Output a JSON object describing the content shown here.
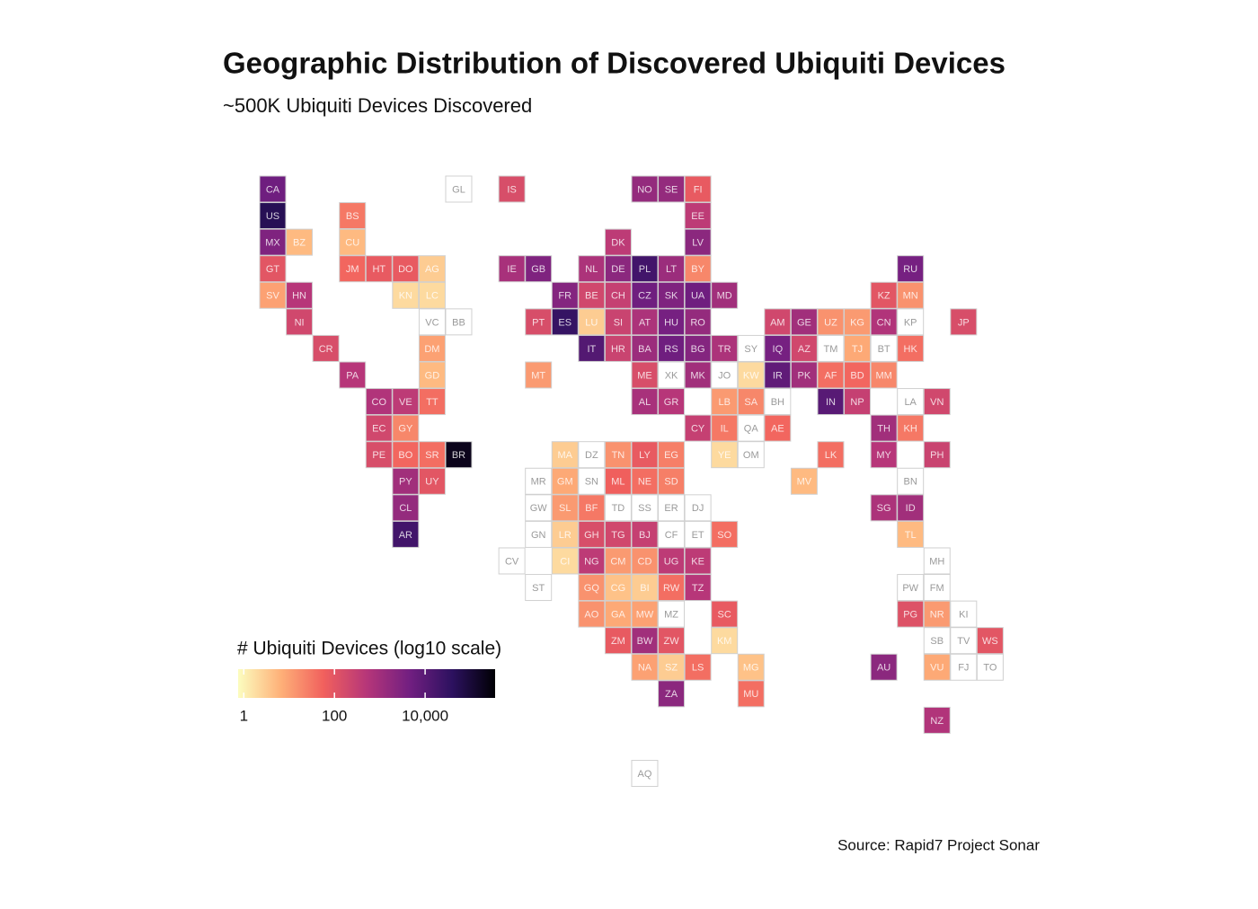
{
  "chart_data": {
    "type": "tilemap",
    "title": "Geographic Distribution of Discovered Ubiquiti Devices",
    "subtitle": "~500K Ubiquiti Devices Discovered",
    "source": "Source: Rapid7 Project Sonar",
    "legend_title": "# Ubiquiti Devices (log10 scale)",
    "log_scale": true,
    "colorlim": [
      0.75,
      350000
    ],
    "colorticks": [
      {
        "value": 1,
        "label": "1"
      },
      {
        "value": 100,
        "label": "100"
      },
      {
        "value": 10000,
        "label": "10,000"
      }
    ],
    "colormap": [
      "#fcfdbf",
      "#feb078",
      "#f1605d",
      "#b63679",
      "#721f81",
      "#2c115f",
      "#000004"
    ],
    "empty_color": "#ffffff",
    "tiles": [
      {
        "code": "CA",
        "value": 5000
      },
      {
        "code": "GL",
        "value": null
      },
      {
        "code": "IS",
        "value": 150
      },
      {
        "code": "NO",
        "value": 1500
      },
      {
        "code": "SE",
        "value": 1500
      },
      {
        "code": "FI",
        "value": 80
      },
      {
        "code": "US",
        "value": 50000
      },
      {
        "code": "BS",
        "value": 30
      },
      {
        "code": "EE",
        "value": 400
      },
      {
        "code": "MX",
        "value": 3000
      },
      {
        "code": "BZ",
        "value": 5
      },
      {
        "code": "CU",
        "value": 5
      },
      {
        "code": "DK",
        "value": 400
      },
      {
        "code": "LV",
        "value": 2000
      },
      {
        "code": "GT",
        "value": 100
      },
      {
        "code": "JM",
        "value": 50
      },
      {
        "code": "HT",
        "value": 80
      },
      {
        "code": "DO",
        "value": 80
      },
      {
        "code": "AG",
        "value": 3
      },
      {
        "code": "IE",
        "value": 800
      },
      {
        "code": "GB",
        "value": 3000
      },
      {
        "code": "NL",
        "value": 700
      },
      {
        "code": "DE",
        "value": 2000
      },
      {
        "code": "PL",
        "value": 20000
      },
      {
        "code": "LT",
        "value": 1200
      },
      {
        "code": "BY",
        "value": 20
      },
      {
        "code": "RU",
        "value": 4000
      },
      {
        "code": "SV",
        "value": 10
      },
      {
        "code": "HN",
        "value": 500
      },
      {
        "code": "KN",
        "value": 2
      },
      {
        "code": "LC",
        "value": 2
      },
      {
        "code": "FR",
        "value": 2500
      },
      {
        "code": "BE",
        "value": 200
      },
      {
        "code": "CH",
        "value": 300
      },
      {
        "code": "CZ",
        "value": 5000
      },
      {
        "code": "SK",
        "value": 3000
      },
      {
        "code": "UA",
        "value": 5000
      },
      {
        "code": "MD",
        "value": 1000
      },
      {
        "code": "KZ",
        "value": 100
      },
      {
        "code": "MN",
        "value": 15
      },
      {
        "code": "NI",
        "value": 200
      },
      {
        "code": "VC",
        "value": null
      },
      {
        "code": "BB",
        "value": null
      },
      {
        "code": "PT",
        "value": 150
      },
      {
        "code": "ES",
        "value": 30000
      },
      {
        "code": "LU",
        "value": 3
      },
      {
        "code": "SI",
        "value": 250
      },
      {
        "code": "AT",
        "value": 700
      },
      {
        "code": "HU",
        "value": 4000
      },
      {
        "code": "RO",
        "value": 1500
      },
      {
        "code": "AM",
        "value": 200
      },
      {
        "code": "GE",
        "value": 1000
      },
      {
        "code": "UZ",
        "value": 15
      },
      {
        "code": "KG",
        "value": 12
      },
      {
        "code": "CN",
        "value": 600
      },
      {
        "code": "KP",
        "value": null
      },
      {
        "code": "JP",
        "value": 150
      },
      {
        "code": "CR",
        "value": 150
      },
      {
        "code": "DM",
        "value": 10
      },
      {
        "code": "IT",
        "value": 12000
      },
      {
        "code": "HR",
        "value": 250
      },
      {
        "code": "BA",
        "value": 1200
      },
      {
        "code": "RS",
        "value": 5000
      },
      {
        "code": "BG",
        "value": 2500
      },
      {
        "code": "TR",
        "value": 700
      },
      {
        "code": "SY",
        "value": null
      },
      {
        "code": "IQ",
        "value": 4000
      },
      {
        "code": "AZ",
        "value": 200
      },
      {
        "code": "TM",
        "value": null
      },
      {
        "code": "TJ",
        "value": 8
      },
      {
        "code": "BT",
        "value": null
      },
      {
        "code": "HK",
        "value": 40
      },
      {
        "code": "PA",
        "value": 500
      },
      {
        "code": "GD",
        "value": 5
      },
      {
        "code": "MT",
        "value": 12
      },
      {
        "code": "ME",
        "value": 150
      },
      {
        "code": "XK",
        "value": null
      },
      {
        "code": "MK",
        "value": 1000
      },
      {
        "code": "JO",
        "value": null
      },
      {
        "code": "KW",
        "value": 2
      },
      {
        "code": "IR",
        "value": 8000
      },
      {
        "code": "PK",
        "value": 1000
      },
      {
        "code": "AF",
        "value": 40
      },
      {
        "code": "BD",
        "value": 50
      },
      {
        "code": "MM",
        "value": 20
      },
      {
        "code": "CO",
        "value": 600
      },
      {
        "code": "VE",
        "value": 400
      },
      {
        "code": "TT",
        "value": 40
      },
      {
        "code": "AL",
        "value": 800
      },
      {
        "code": "GR",
        "value": 500
      },
      {
        "code": "LB",
        "value": 12
      },
      {
        "code": "SA",
        "value": 20
      },
      {
        "code": "BH",
        "value": null
      },
      {
        "code": "IN",
        "value": 10000
      },
      {
        "code": "NP",
        "value": 300
      },
      {
        "code": "LA",
        "value": null
      },
      {
        "code": "VN",
        "value": 200
      },
      {
        "code": "EC",
        "value": 200
      },
      {
        "code": "GY",
        "value": 20
      },
      {
        "code": "CY",
        "value": 300
      },
      {
        "code": "IL",
        "value": 30
      },
      {
        "code": "QA",
        "value": null
      },
      {
        "code": "AE",
        "value": 50
      },
      {
        "code": "TH",
        "value": 1000
      },
      {
        "code": "KH",
        "value": 30
      },
      {
        "code": "PE",
        "value": 150
      },
      {
        "code": "BO",
        "value": 50
      },
      {
        "code": "SR",
        "value": 40
      },
      {
        "code": "BR",
        "value": 200000
      },
      {
        "code": "MA",
        "value": 3
      },
      {
        "code": "DZ",
        "value": null
      },
      {
        "code": "TN",
        "value": 15
      },
      {
        "code": "LY",
        "value": 80
      },
      {
        "code": "EG",
        "value": 25
      },
      {
        "code": "YE",
        "value": 2
      },
      {
        "code": "OM",
        "value": null
      },
      {
        "code": "LK",
        "value": 40
      },
      {
        "code": "MY",
        "value": 500
      },
      {
        "code": "PH",
        "value": 250
      },
      {
        "code": "PY",
        "value": 1000
      },
      {
        "code": "UY",
        "value": 100
      },
      {
        "code": "MR",
        "value": null
      },
      {
        "code": "GM",
        "value": 8
      },
      {
        "code": "SN",
        "value": null
      },
      {
        "code": "ML",
        "value": 60
      },
      {
        "code": "NE",
        "value": 40
      },
      {
        "code": "SD",
        "value": 25
      },
      {
        "code": "MV",
        "value": 5
      },
      {
        "code": "BN",
        "value": null
      },
      {
        "code": "CL",
        "value": 1500
      },
      {
        "code": "GW",
        "value": null
      },
      {
        "code": "SL",
        "value": 12
      },
      {
        "code": "BF",
        "value": 30
      },
      {
        "code": "TD",
        "value": null
      },
      {
        "code": "SS",
        "value": null
      },
      {
        "code": "ER",
        "value": null
      },
      {
        "code": "DJ",
        "value": null
      },
      {
        "code": "SG",
        "value": 700
      },
      {
        "code": "ID",
        "value": 1000
      },
      {
        "code": "AR",
        "value": 20000
      },
      {
        "code": "GN",
        "value": null
      },
      {
        "code": "LR",
        "value": 3
      },
      {
        "code": "GH",
        "value": 150
      },
      {
        "code": "TG",
        "value": 200
      },
      {
        "code": "BJ",
        "value": 300
      },
      {
        "code": "CF",
        "value": null
      },
      {
        "code": "ET",
        "value": null
      },
      {
        "code": "SO",
        "value": 40
      },
      {
        "code": "TL",
        "value": 5
      },
      {
        "code": "CV",
        "value": null
      },
      {
        "code": "CI",
        "value": 2
      },
      {
        "code": "NG",
        "value": 400
      },
      {
        "code": "CM",
        "value": 12
      },
      {
        "code": "CD",
        "value": 15
      },
      {
        "code": "UG",
        "value": 400
      },
      {
        "code": "KE",
        "value": 400
      },
      {
        "code": "MH",
        "value": null
      },
      {
        "code": "ST",
        "value": null
      },
      {
        "code": "GQ",
        "value": 15
      },
      {
        "code": "CG",
        "value": 4
      },
      {
        "code": "BI",
        "value": 3
      },
      {
        "code": "RW",
        "value": 40
      },
      {
        "code": "TZ",
        "value": 500
      },
      {
        "code": "PW",
        "value": null
      },
      {
        "code": "FM",
        "value": null
      },
      {
        "code": "AO",
        "value": 15
      },
      {
        "code": "GA",
        "value": 8
      },
      {
        "code": "MW",
        "value": 10
      },
      {
        "code": "MZ",
        "value": null
      },
      {
        "code": "SC",
        "value": 80
      },
      {
        "code": "PG",
        "value": 120
      },
      {
        "code": "NR",
        "value": 12
      },
      {
        "code": "KI",
        "value": null
      },
      {
        "code": "ZM",
        "value": 80
      },
      {
        "code": "BW",
        "value": 1000
      },
      {
        "code": "ZW",
        "value": 100
      },
      {
        "code": "KM",
        "value": 2
      },
      {
        "code": "SB",
        "value": null
      },
      {
        "code": "TV",
        "value": null
      },
      {
        "code": "WS",
        "value": 100
      },
      {
        "code": "NA",
        "value": 10
      },
      {
        "code": "SZ",
        "value": 3
      },
      {
        "code": "LS",
        "value": 40
      },
      {
        "code": "MG",
        "value": 4
      },
      {
        "code": "AU",
        "value": 2000
      },
      {
        "code": "VU",
        "value": 8
      },
      {
        "code": "FJ",
        "value": null
      },
      {
        "code": "TO",
        "value": null
      },
      {
        "code": "ZA",
        "value": 2000
      },
      {
        "code": "MU",
        "value": 40
      },
      {
        "code": "NZ",
        "value": 600
      },
      {
        "code": "AQ",
        "value": null
      }
    ]
  }
}
